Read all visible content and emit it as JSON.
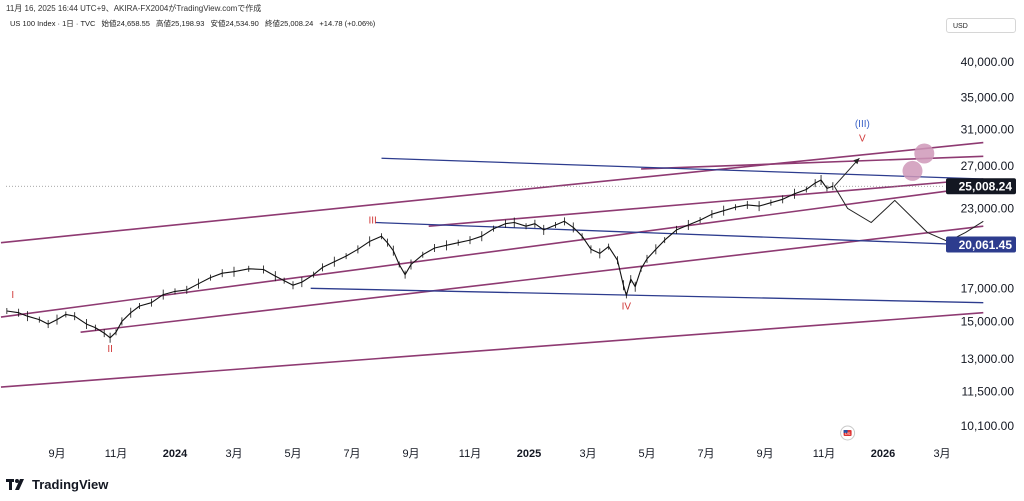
{
  "header": {
    "timestamp_line": "11月 16, 2025 16:44 UTC+9、AKIRA-FX2004がTradingView.comで作成",
    "symbol": "US 100 Index · 1日 · TVC",
    "open": "始値24,658.55",
    "high": "高値25,198.93",
    "low": "安値24,534.90",
    "close": "終値25,008.24",
    "change": "+14.78 (+0.06%)"
  },
  "currency_button": "USD",
  "footer": {
    "brand": "TradingView"
  },
  "colors": {
    "channel": "#8e3a72",
    "blue_line": "#2d3c8e",
    "price": "#111111",
    "wave_label": "#d13a3a",
    "wave_label_blue": "#3d64c8",
    "target_circle": "#cf98b8",
    "price_badge_bg": "#131722"
  },
  "chart_data": {
    "type": "line",
    "title": "US 100 Index · 1日 · TVC",
    "ylabel": "USD",
    "yscale": "log",
    "ylim": [
      9000,
      47000
    ],
    "y_ticks": [
      {
        "value": 40000,
        "label": "40,000.00"
      },
      {
        "value": 35000,
        "label": "35,000.00"
      },
      {
        "value": 31000,
        "label": "31,000.00"
      },
      {
        "value": 27000,
        "label": "27,000.00"
      },
      {
        "value": 23000,
        "label": "23,000.00"
      },
      {
        "value": 17000,
        "label": "17,000.00"
      },
      {
        "value": 15000,
        "label": "15,000.00"
      },
      {
        "value": 13000,
        "label": "13,000.00"
      },
      {
        "value": 11500,
        "label": "11,500.00"
      },
      {
        "value": 10100,
        "label": "10,100.00"
      }
    ],
    "x_ticks": [
      {
        "t": 0,
        "label": "9月",
        "bold": false
      },
      {
        "t": 2,
        "label": "11月",
        "bold": false
      },
      {
        "t": 4,
        "label": "2024",
        "bold": true
      },
      {
        "t": 6,
        "label": "3月",
        "bold": false
      },
      {
        "t": 8,
        "label": "5月",
        "bold": false
      },
      {
        "t": 10,
        "label": "7月",
        "bold": false
      },
      {
        "t": 12,
        "label": "9月",
        "bold": false
      },
      {
        "t": 14,
        "label": "11月",
        "bold": false
      },
      {
        "t": 16,
        "label": "2025",
        "bold": true
      },
      {
        "t": 18,
        "label": "3月",
        "bold": false
      },
      {
        "t": 20,
        "label": "5月",
        "bold": false
      },
      {
        "t": 22,
        "label": "7月",
        "bold": false
      },
      {
        "t": 24,
        "label": "9月",
        "bold": false
      },
      {
        "t": 26,
        "label": "11月",
        "bold": false
      },
      {
        "t": 28,
        "label": "2026",
        "bold": true
      },
      {
        "t": 30,
        "label": "3月",
        "bold": false
      }
    ],
    "price_series": [
      [
        -1.7,
        15600
      ],
      [
        -1.3,
        15500
      ],
      [
        -1.0,
        15300
      ],
      [
        -0.6,
        15100
      ],
      [
        -0.3,
        14850
      ],
      [
        0.0,
        15100
      ],
      [
        0.3,
        15400
      ],
      [
        0.6,
        15300
      ],
      [
        1.0,
        14850
      ],
      [
        1.3,
        14650
      ],
      [
        1.6,
        14350
      ],
      [
        1.8,
        14100
      ],
      [
        2.0,
        14400
      ],
      [
        2.2,
        15000
      ],
      [
        2.5,
        15500
      ],
      [
        2.8,
        15900
      ],
      [
        3.2,
        16100
      ],
      [
        3.6,
        16600
      ],
      [
        4.0,
        16800
      ],
      [
        4.4,
        16900
      ],
      [
        4.8,
        17300
      ],
      [
        5.2,
        17700
      ],
      [
        5.6,
        18000
      ],
      [
        6.0,
        18100
      ],
      [
        6.5,
        18300
      ],
      [
        7.0,
        18250
      ],
      [
        7.4,
        17800
      ],
      [
        7.7,
        17500
      ],
      [
        8.0,
        17200
      ],
      [
        8.3,
        17400
      ],
      [
        8.7,
        17900
      ],
      [
        9.0,
        18400
      ],
      [
        9.4,
        18800
      ],
      [
        9.8,
        19200
      ],
      [
        10.2,
        19700
      ],
      [
        10.6,
        20300
      ],
      [
        11.0,
        20700
      ],
      [
        11.2,
        20200
      ],
      [
        11.4,
        19600
      ],
      [
        11.6,
        18600
      ],
      [
        11.8,
        17900
      ],
      [
        12.0,
        18600
      ],
      [
        12.4,
        19300
      ],
      [
        12.8,
        19800
      ],
      [
        13.2,
        20000
      ],
      [
        13.6,
        20200
      ],
      [
        14.0,
        20400
      ],
      [
        14.4,
        20700
      ],
      [
        14.8,
        21300
      ],
      [
        15.2,
        21700
      ],
      [
        15.5,
        21800
      ],
      [
        15.9,
        21500
      ],
      [
        16.2,
        21700
      ],
      [
        16.5,
        21200
      ],
      [
        16.9,
        21600
      ],
      [
        17.2,
        21900
      ],
      [
        17.5,
        21400
      ],
      [
        17.8,
        20700
      ],
      [
        18.1,
        19700
      ],
      [
        18.4,
        19400
      ],
      [
        18.7,
        19900
      ],
      [
        19.0,
        18900
      ],
      [
        19.2,
        17200
      ],
      [
        19.3,
        16550
      ],
      [
        19.45,
        17600
      ],
      [
        19.6,
        17100
      ],
      [
        19.8,
        18300
      ],
      [
        20.0,
        19000
      ],
      [
        20.3,
        19700
      ],
      [
        20.6,
        20400
      ],
      [
        21.0,
        21200
      ],
      [
        21.4,
        21600
      ],
      [
        21.8,
        22000
      ],
      [
        22.2,
        22500
      ],
      [
        22.6,
        22800
      ],
      [
        23.0,
        23100
      ],
      [
        23.4,
        23300
      ],
      [
        23.8,
        23200
      ],
      [
        24.2,
        23500
      ],
      [
        24.6,
        23800
      ],
      [
        25.0,
        24300
      ],
      [
        25.4,
        24700
      ],
      [
        25.7,
        25300
      ],
      [
        25.9,
        25600
      ],
      [
        26.1,
        24800
      ],
      [
        26.3,
        25008
      ]
    ],
    "projection_path": [
      [
        26.35,
        25008
      ],
      [
        26.8,
        23000
      ],
      [
        27.6,
        21800
      ],
      [
        28.4,
        23700
      ],
      [
        29.5,
        21000
      ],
      [
        30.2,
        20300
      ],
      [
        30.8,
        21000
      ],
      [
        31.4,
        21900
      ]
    ],
    "projection_up": [
      [
        26.35,
        25008
      ],
      [
        27.2,
        27800
      ]
    ],
    "channel_lines": [
      [
        [
          -1.9,
          20200
        ],
        [
          31.4,
          29500
        ]
      ],
      [
        [
          -1.9,
          15250
        ],
        [
          31.4,
          25000
        ]
      ],
      [
        [
          0.8,
          14400
        ],
        [
          31.4,
          21500
        ]
      ],
      [
        [
          -1.9,
          11700
        ],
        [
          31.4,
          15500
        ]
      ],
      [
        [
          19.8,
          26700
        ],
        [
          31.4,
          28000
        ]
      ],
      [
        [
          12.6,
          21500
        ],
        [
          31.4,
          25700
        ]
      ]
    ],
    "blue_lines": [
      [
        [
          11.0,
          27800
        ],
        [
          31.4,
          25700
        ]
      ],
      [
        [
          10.8,
          21800
        ],
        [
          31.4,
          20000
        ]
      ],
      [
        [
          8.6,
          17000
        ],
        [
          31.4,
          16100
        ]
      ]
    ],
    "wave_labels": [
      {
        "label": "I",
        "t": -1.5,
        "value": 16400,
        "color": "red"
      },
      {
        "label": "II",
        "t": 1.8,
        "value": 13350,
        "color": "red"
      },
      {
        "label": "III",
        "t": 10.7,
        "value": 21700,
        "color": "red"
      },
      {
        "label": "IV",
        "t": 19.3,
        "value": 15700,
        "color": "red"
      },
      {
        "label": "V",
        "t": 27.3,
        "value": 29600,
        "color": "red"
      },
      {
        "label": "(III)",
        "t": 27.3,
        "value": 31300,
        "color": "blue"
      }
    ],
    "target_circles": [
      {
        "t": 29.0,
        "value": 26500
      },
      {
        "t": 29.4,
        "value": 28300
      }
    ],
    "last_price": {
      "value": 25008.24,
      "label": "25,008.24",
      "style": "dark"
    },
    "line_price": {
      "value": 20061.45,
      "label": "20,061.45",
      "style": "blue"
    },
    "event_marker": {
      "t": 26.8,
      "label": "US"
    }
  }
}
